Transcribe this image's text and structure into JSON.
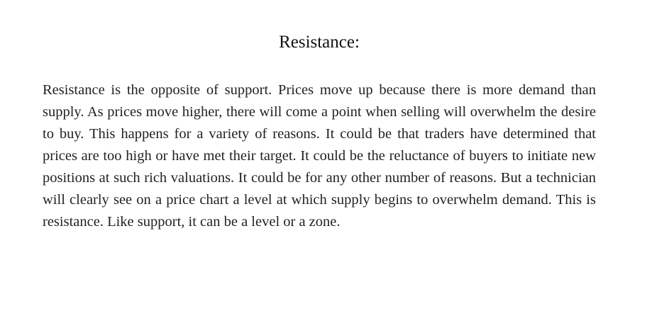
{
  "document": {
    "heading": "Resistance:",
    "paragraph": "Resistance is the opposite of support. Prices move up because there is more demand than supply. As prices move higher, there will come a point when selling will overwhelm the desire to buy. This happens for a variety of reasons. It could be that traders have determined that prices are too high or have met their target. It could be the reluctance of buyers to initiate new positions at such rich valuations. It could be for any other number of reasons. But a technician will clearly see on a price chart a level at which supply begins to overwhelm demand. This is resistance. Like support, it can be a level or a zone."
  }
}
